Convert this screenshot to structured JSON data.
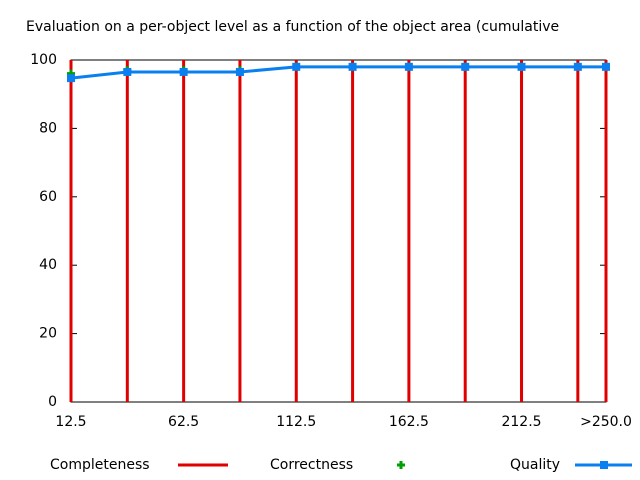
{
  "chart_data": {
    "type": "line",
    "title": "Evaluation on a per-object level as a function of the object area (cumulative",
    "x": [
      12.5,
      37.5,
      62.5,
      87.5,
      112.5,
      137.5,
      162.5,
      187.5,
      212.5,
      237.5,
      250
    ],
    "series": [
      {
        "name": "Completeness",
        "color": "#e00000",
        "style": "impulses",
        "values": [
          100,
          100,
          100,
          100,
          100,
          100,
          100,
          100,
          100,
          100,
          100
        ]
      },
      {
        "name": "Correctness",
        "color": "#00a000",
        "style": "points",
        "values": [
          96,
          97,
          97,
          97,
          98,
          98,
          98,
          98,
          98,
          98,
          98
        ]
      },
      {
        "name": "Quality",
        "color": "#0a80f0",
        "style": "linespoints",
        "values": [
          94.7,
          96.5,
          96.5,
          96.5,
          98,
          98,
          98,
          98,
          98,
          98,
          98
        ]
      }
    ],
    "xlim": [
      12.5,
      250
    ],
    "xticks": [
      12.5,
      62.5,
      112.5,
      162.5,
      212.5,
      {
        "value": 250,
        "label": ">250.0"
      }
    ],
    "ylim": [
      0,
      100
    ],
    "yticks": [
      0,
      20,
      40,
      60,
      80,
      100
    ]
  }
}
